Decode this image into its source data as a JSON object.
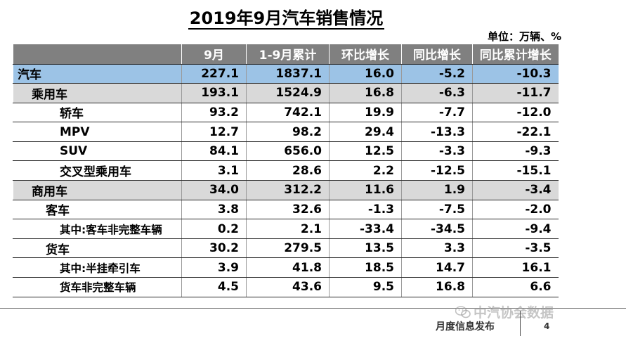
{
  "title": "2019年9月汽车销售情况",
  "unit": "单位：万辆、%",
  "columns": [
    "",
    "9月",
    "1-9月累计",
    "环比增长",
    "同比增长",
    "同比累计增长"
  ],
  "rows": [
    {
      "name": "汽车",
      "values": [
        "227.1",
        "1837.1",
        "16.0",
        "-5.2",
        "-10.3"
      ]
    },
    {
      "name": "乘用车",
      "values": [
        "193.1",
        "1524.9",
        "16.8",
        "-6.3",
        "-11.7"
      ]
    },
    {
      "name": "轿车",
      "values": [
        "93.2",
        "742.1",
        "19.9",
        "-7.7",
        "-12.0"
      ]
    },
    {
      "name": "MPV",
      "values": [
        "12.7",
        "98.2",
        "29.4",
        "-13.3",
        "-22.1"
      ]
    },
    {
      "name": "SUV",
      "values": [
        "84.1",
        "656.0",
        "12.5",
        "-3.3",
        "-9.3"
      ]
    },
    {
      "name": "交叉型乘用车",
      "values": [
        "3.1",
        "28.6",
        "2.2",
        "-12.5",
        "-15.1"
      ]
    },
    {
      "name": "商用车",
      "values": [
        "34.0",
        "312.2",
        "11.6",
        "1.9",
        "-3.4"
      ]
    },
    {
      "name": "客车",
      "values": [
        "3.8",
        "32.6",
        "-1.3",
        "-7.5",
        "-2.0"
      ]
    },
    {
      "name": "其中:客车非完整车辆",
      "values": [
        "0.2",
        "2.1",
        "-33.4",
        "-34.5",
        "-9.4"
      ]
    },
    {
      "name": "货车",
      "values": [
        "30.2",
        "279.5",
        "13.5",
        "3.3",
        "-3.5"
      ]
    },
    {
      "name": "其中:半挂牵引车",
      "values": [
        "3.9",
        "41.8",
        "18.5",
        "14.7",
        "16.1"
      ]
    },
    {
      "name": "货车非完整车辆",
      "values": [
        "4.5",
        "43.6",
        "9.5",
        "16.8",
        "6.6"
      ]
    }
  ],
  "footer": {
    "label": "月度信息发布",
    "page": "4",
    "watermark": "中汽协会数据",
    "watermark_icon": "wechat-icon"
  },
  "colors": {
    "header_bg": "#808080",
    "total_row_bg": "#9cc3e6",
    "group_row_bg": "#d9d9d9"
  }
}
